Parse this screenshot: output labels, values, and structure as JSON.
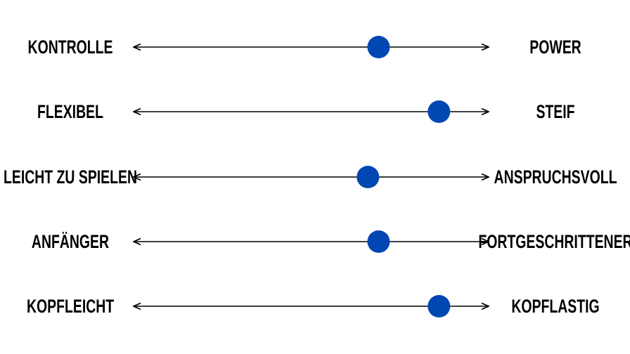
{
  "range": [
    0,
    100
  ],
  "rows": [
    {
      "left": "KONTROLLE",
      "right": "POWER",
      "value": 69
    },
    {
      "left": "FLEXIBEL",
      "right": "STEIF",
      "value": 86
    },
    {
      "left": "LEICHT ZU SPIELEN",
      "right": "ANSPRUCHSVOLL",
      "value": 66
    },
    {
      "left": "ANFÄNGER",
      "right": "FORTGESCHRITTENER",
      "value": 69
    },
    {
      "left": "KOPFLEICHT",
      "right": "KOPFLASTIG",
      "value": 86
    }
  ]
}
